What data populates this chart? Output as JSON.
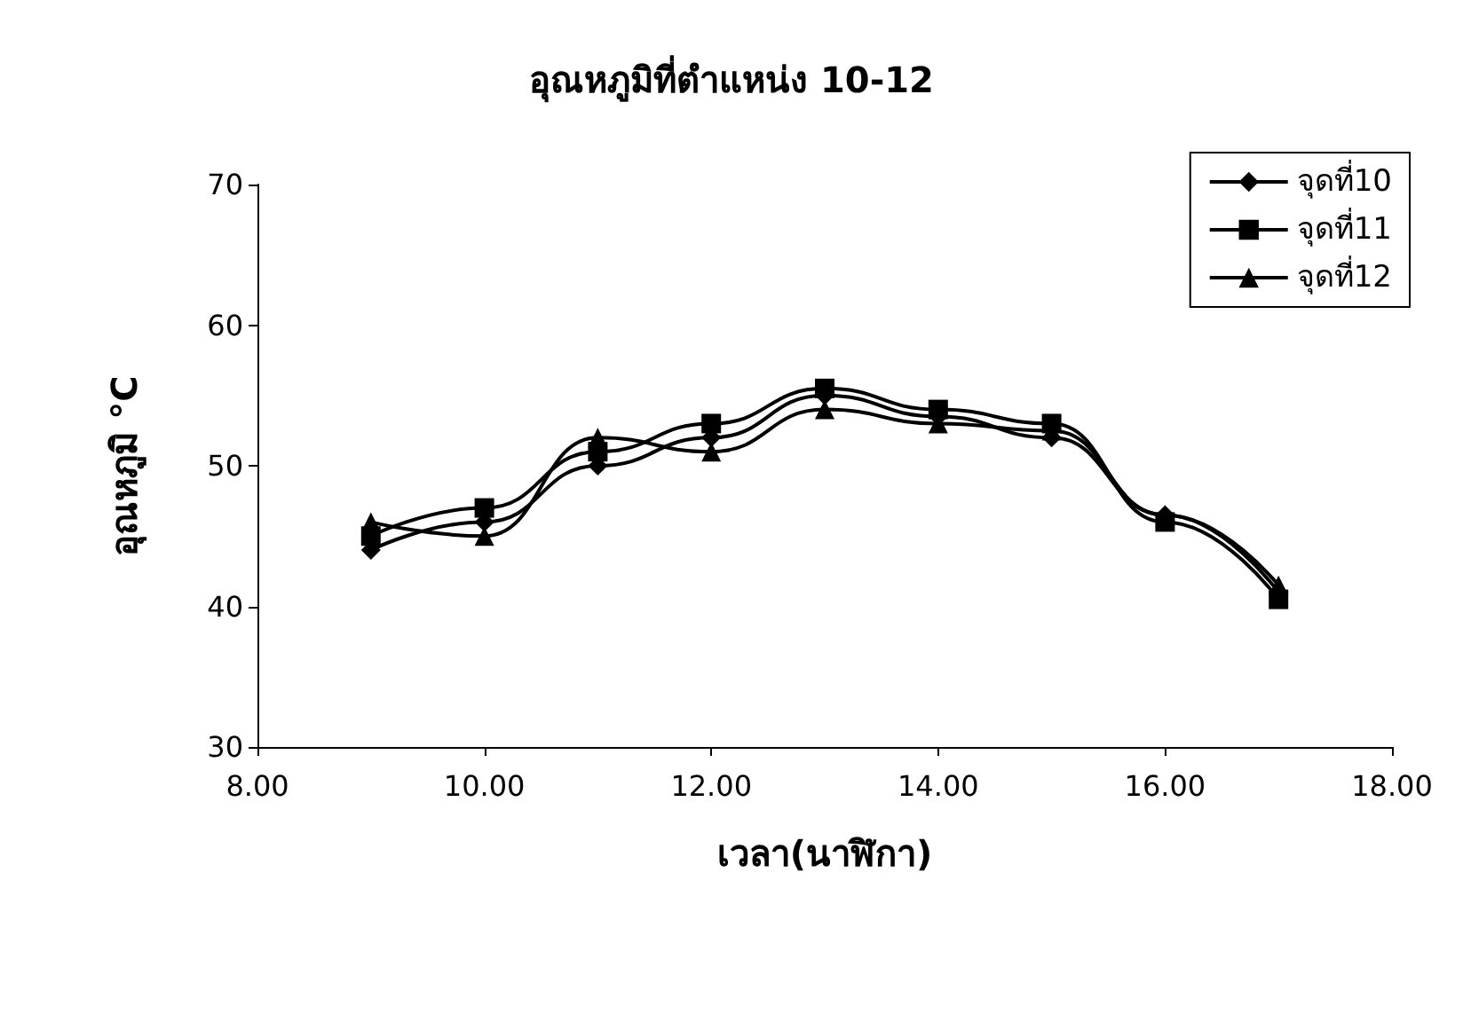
{
  "chart_data": {
    "type": "line",
    "title": "อุณหภูมิที่ตำแหน่ง 10-12",
    "xlabel": "เวลา(นาฬิกา)",
    "ylabel": "อุณหภูมิ °C",
    "x": [
      9,
      10,
      11,
      12,
      13,
      14,
      15,
      16,
      17
    ],
    "series": [
      {
        "name": "จุดที่10",
        "color": "#000000",
        "marker": "diamond",
        "values": [
          44,
          46,
          50,
          52,
          55,
          53.5,
          52,
          46.5,
          41
        ]
      },
      {
        "name": "จุดที่11",
        "color": "#000000",
        "marker": "square",
        "values": [
          45,
          47,
          51,
          53,
          55.5,
          54,
          53,
          46,
          40.5
        ]
      },
      {
        "name": "จุดที่12",
        "color": "#000000",
        "marker": "triangle",
        "values": [
          46,
          45,
          52,
          51,
          54,
          53,
          52.5,
          46.5,
          41.5
        ]
      }
    ],
    "xlim": [
      8,
      18
    ],
    "xticks": [
      {
        "value": 8,
        "label": "8.00"
      },
      {
        "value": 10,
        "label": "10.00"
      },
      {
        "value": 12,
        "label": "12.00"
      },
      {
        "value": 14,
        "label": "14.00"
      },
      {
        "value": 16,
        "label": "16.00"
      },
      {
        "value": 18,
        "label": "18.00"
      }
    ],
    "ylim": [
      30,
      70
    ],
    "yticks": [
      30,
      40,
      50,
      60,
      70
    ],
    "grid": false,
    "legend": "top right",
    "line_style": "solid"
  }
}
